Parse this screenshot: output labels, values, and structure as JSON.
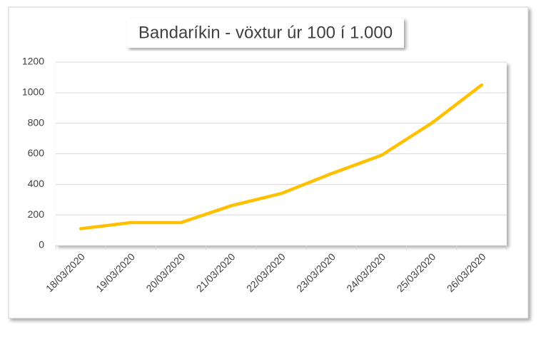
{
  "chart_data": {
    "type": "line",
    "title": "Bandaríkin - vöxtur úr 100 í 1.000",
    "categories": [
      "18/03/2020",
      "19/03/2020",
      "20/03/2020",
      "21/03/2020",
      "22/03/2020",
      "23/03/2020",
      "24/03/2020",
      "25/03/2020",
      "26/03/2020"
    ],
    "series": [
      {
        "name": "Bandaríkin",
        "color": "#ffc000",
        "values": [
          110,
          150,
          150,
          260,
          340,
          470,
          590,
          800,
          1050
        ]
      }
    ],
    "ylim": [
      0,
      1200
    ],
    "yticks": [
      0,
      200,
      400,
      600,
      800,
      1000,
      1200
    ],
    "grid": true
  }
}
